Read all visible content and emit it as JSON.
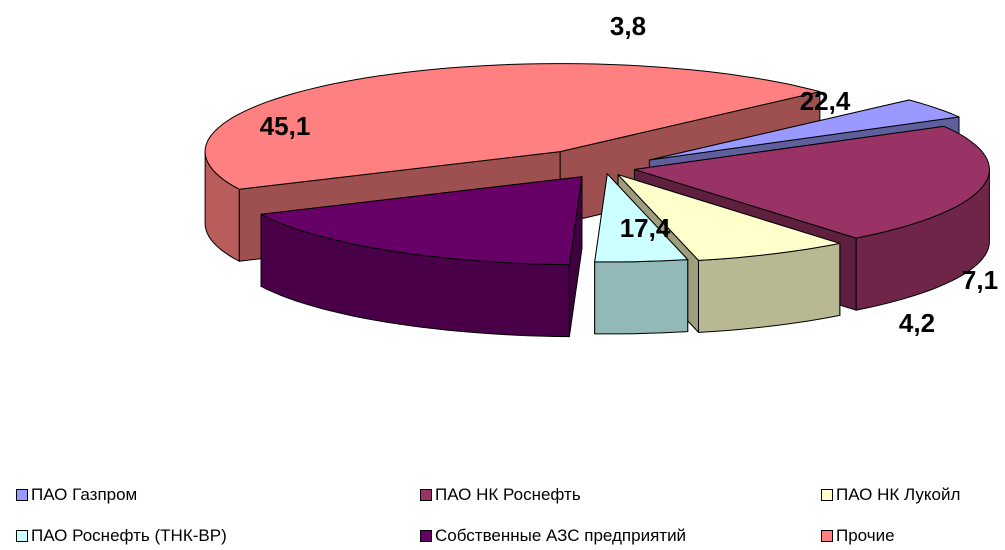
{
  "chart_data": {
    "type": "pie",
    "style": "3d-exploded",
    "categories": [
      "ПАО Газпром",
      "ПАО  НК Роснефть",
      "ПАО НК Лукойл",
      "ПАО Роснефть (ТНК-BP)",
      "Собственные АЗС предприятий",
      "Прочие"
    ],
    "values": [
      3.8,
      22.4,
      7.1,
      4.2,
      17.4,
      45.1
    ],
    "data_labels": [
      "3,8",
      "22,4",
      "7,1",
      "4,2",
      "17,4",
      "45,1"
    ],
    "colors": [
      "#9999ff",
      "#993366",
      "#ffffcc",
      "#ccffff",
      "#660066",
      "#ff8080"
    ],
    "legend_position": "bottom",
    "title": ""
  }
}
